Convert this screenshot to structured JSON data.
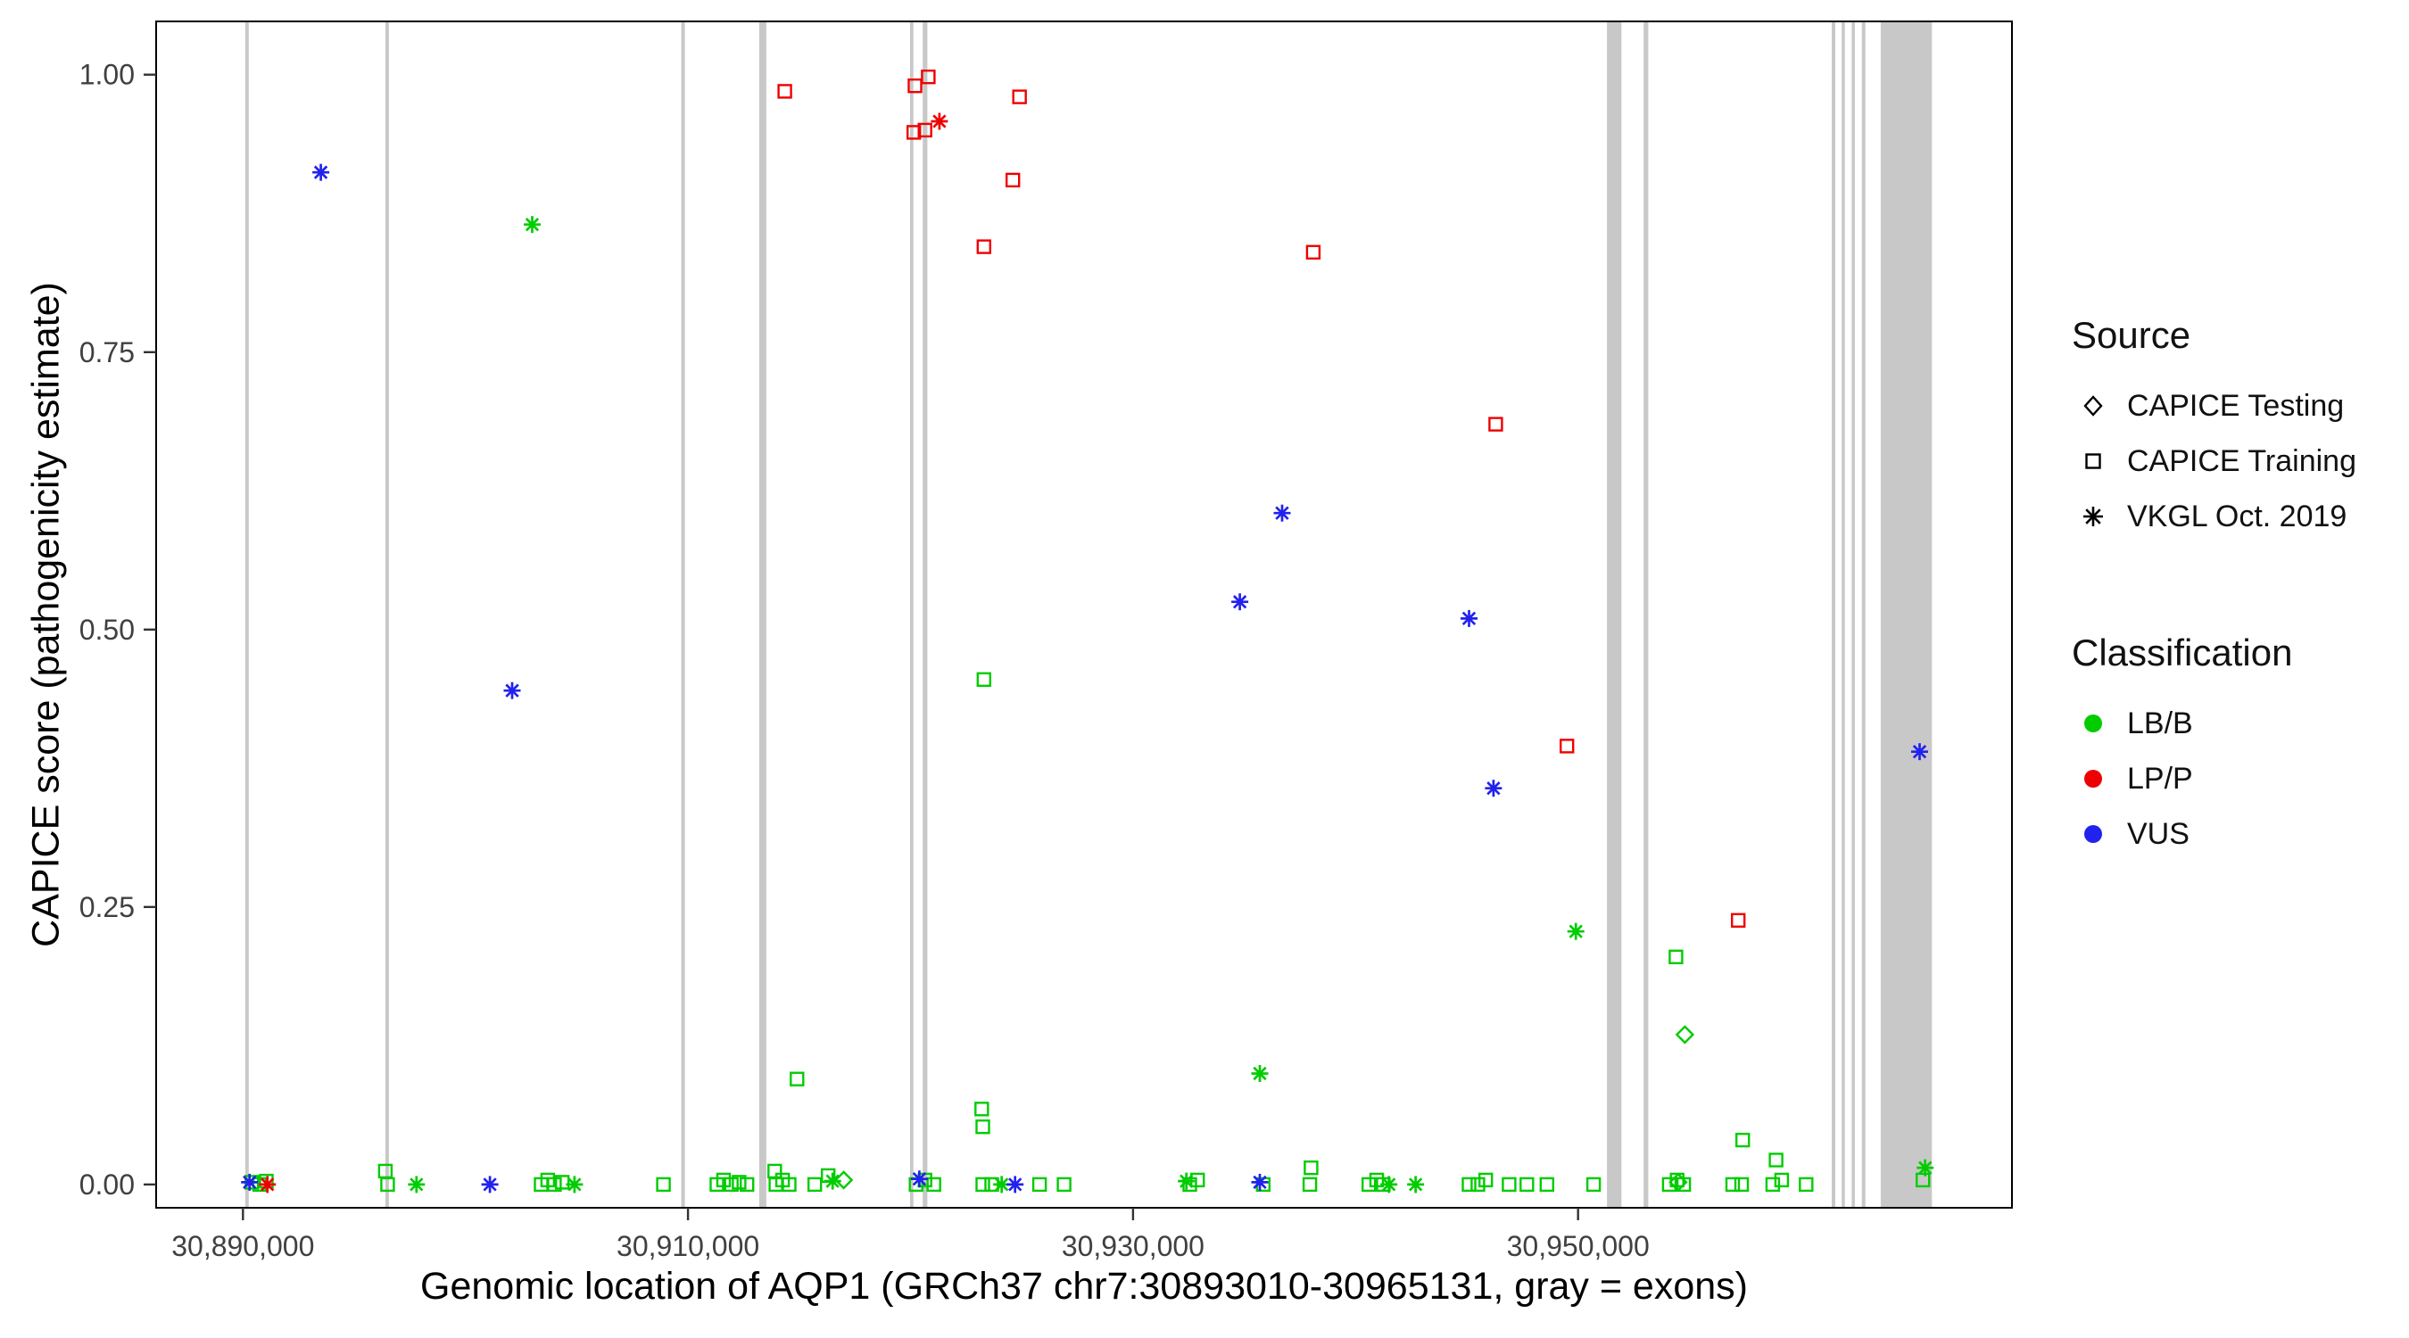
{
  "chart_data": {
    "type": "scatter",
    "title": "",
    "xlabel": "Genomic location of AQP1 (GRCh37 chr7:30893010-30965131, gray = exons)",
    "ylabel": "CAPICE score (pathogenicity estimate)",
    "xlim": [
      30886100,
      30969500
    ],
    "ylim": [
      -0.021,
      1.048
    ],
    "grid": false,
    "x_ticks": [
      {
        "value": 30890000,
        "label": "30,890,000"
      },
      {
        "value": 30910000,
        "label": "30,910,000"
      },
      {
        "value": 30930000,
        "label": "30,930,000"
      },
      {
        "value": 30950000,
        "label": "30,950,000"
      }
    ],
    "y_ticks": [
      {
        "value": 0.0,
        "label": "0.00"
      },
      {
        "value": 0.25,
        "label": "0.25"
      },
      {
        "value": 0.5,
        "label": "0.50"
      },
      {
        "value": 0.75,
        "label": "0.75"
      },
      {
        "value": 1.0,
        "label": "1.00"
      }
    ],
    "exon_color": "#c8c8c8",
    "exons": [
      {
        "start": 30890100,
        "end": 30890260
      },
      {
        "start": 30896400,
        "end": 30896560
      },
      {
        "start": 30909700,
        "end": 30909860
      },
      {
        "start": 30913200,
        "end": 30913520
      },
      {
        "start": 30919980,
        "end": 30920130
      },
      {
        "start": 30920550,
        "end": 30920760
      },
      {
        "start": 30951300,
        "end": 30951950
      },
      {
        "start": 30952950,
        "end": 30953160
      },
      {
        "start": 30961400,
        "end": 30961560
      },
      {
        "start": 30961850,
        "end": 30961990
      },
      {
        "start": 30962300,
        "end": 30962440
      },
      {
        "start": 30962750,
        "end": 30962910
      },
      {
        "start": 30963600,
        "end": 30965900
      }
    ],
    "classification_colors": {
      "LB/B": "#00cc00",
      "LP/P": "#ee0000",
      "VUS": "#2222ee"
    },
    "series": [
      {
        "name": "CAPICE Testing / LB/B",
        "source": "CAPICE Testing",
        "classification": "LB/B",
        "shape": "diamond",
        "color": "#00cc00",
        "points": [
          [
            30917000,
            0.004
          ],
          [
            30954800,
            0.135
          ],
          [
            30954500,
            0.002
          ]
        ]
      },
      {
        "name": "CAPICE Training / LB/B",
        "source": "CAPICE Training",
        "classification": "LB/B",
        "shape": "square",
        "color": "#00cc00",
        "points": [
          [
            30914900,
            0.095
          ],
          [
            30923300,
            0.455
          ],
          [
            30923200,
            0.068
          ],
          [
            30923250,
            0.052
          ],
          [
            30954400,
            0.205
          ],
          [
            30957400,
            0.04
          ],
          [
            30958900,
            0.022
          ],
          [
            30913900,
            0.012
          ],
          [
            30896400,
            0.012
          ],
          [
            30938000,
            0.015
          ],
          [
            30916300,
            0.008
          ],
          [
            30890400,
            0.002
          ],
          [
            30890750,
            0.0
          ],
          [
            30891050,
            0.003
          ],
          [
            30896500,
            0.0
          ],
          [
            30903400,
            0.0
          ],
          [
            30903700,
            0.004
          ],
          [
            30904000,
            0.0
          ],
          [
            30904350,
            0.002
          ],
          [
            30908900,
            0.0
          ],
          [
            30911300,
            0.0
          ],
          [
            30911600,
            0.004
          ],
          [
            30911950,
            0.0
          ],
          [
            30912300,
            0.002
          ],
          [
            30912650,
            0.0
          ],
          [
            30913950,
            0.0
          ],
          [
            30914250,
            0.004
          ],
          [
            30914550,
            0.0
          ],
          [
            30915700,
            0.0
          ],
          [
            30920250,
            0.0
          ],
          [
            30920650,
            0.004
          ],
          [
            30921050,
            0.0
          ],
          [
            30923250,
            0.0
          ],
          [
            30923650,
            0.0
          ],
          [
            30925800,
            0.0
          ],
          [
            30926900,
            0.0
          ],
          [
            30932550,
            0.0
          ],
          [
            30932900,
            0.004
          ],
          [
            30935850,
            0.0
          ],
          [
            30937950,
            0.0
          ],
          [
            30940600,
            0.0
          ],
          [
            30940950,
            0.004
          ],
          [
            30941250,
            0.0
          ],
          [
            30945100,
            0.0
          ],
          [
            30945500,
            0.0
          ],
          [
            30945850,
            0.004
          ],
          [
            30946900,
            0.0
          ],
          [
            30947700,
            0.0
          ],
          [
            30948600,
            0.0
          ],
          [
            30950700,
            0.0
          ],
          [
            30954100,
            0.0
          ],
          [
            30954450,
            0.004
          ],
          [
            30954750,
            0.0
          ],
          [
            30956950,
            0.0
          ],
          [
            30957350,
            0.0
          ],
          [
            30958750,
            0.0
          ],
          [
            30959150,
            0.004
          ],
          [
            30960250,
            0.0
          ],
          [
            30965500,
            0.004
          ]
        ]
      },
      {
        "name": "CAPICE Training / LP/P",
        "source": "CAPICE Training",
        "classification": "LP/P",
        "shape": "square",
        "color": "#ee0000",
        "points": [
          [
            30914350,
            0.985
          ],
          [
            30920200,
            0.99
          ],
          [
            30920800,
            0.998
          ],
          [
            30920150,
            0.948
          ],
          [
            30920650,
            0.95
          ],
          [
            30924900,
            0.98
          ],
          [
            30924600,
            0.905
          ],
          [
            30923300,
            0.845
          ],
          [
            30938100,
            0.84
          ],
          [
            30946300,
            0.685
          ],
          [
            30949500,
            0.395
          ],
          [
            30957200,
            0.238
          ]
        ]
      },
      {
        "name": "VKGL Oct. 2019 / LB/B",
        "source": "VKGL Oct. 2019",
        "classification": "LB/B",
        "shape": "asterisk",
        "color": "#00cc00",
        "points": [
          [
            30903000,
            0.865
          ],
          [
            30935700,
            0.1
          ],
          [
            30949900,
            0.228
          ],
          [
            30965600,
            0.015
          ],
          [
            30897800,
            0.0
          ],
          [
            30904900,
            0.0
          ],
          [
            30916500,
            0.003
          ],
          [
            30924100,
            0.0
          ],
          [
            30932400,
            0.003
          ],
          [
            30941500,
            0.0
          ],
          [
            30942700,
            0.0
          ]
        ]
      },
      {
        "name": "VKGL Oct. 2019 / LP/P",
        "source": "VKGL Oct. 2019",
        "classification": "LP/P",
        "shape": "asterisk",
        "color": "#ee0000",
        "points": [
          [
            30921300,
            0.958
          ],
          [
            30891100,
            0.0
          ]
        ]
      },
      {
        "name": "VKGL Oct. 2019 / VUS",
        "source": "VKGL Oct. 2019",
        "classification": "VUS",
        "shape": "asterisk",
        "color": "#2222ee",
        "points": [
          [
            30893500,
            0.912
          ],
          [
            30902100,
            0.445
          ],
          [
            30934800,
            0.525
          ],
          [
            30936700,
            0.605
          ],
          [
            30945100,
            0.51
          ],
          [
            30946200,
            0.357
          ],
          [
            30965350,
            0.39
          ],
          [
            30890300,
            0.002
          ],
          [
            30901100,
            0.0
          ],
          [
            30920400,
            0.005
          ],
          [
            30924700,
            0.0
          ],
          [
            30935700,
            0.002
          ]
        ]
      }
    ],
    "legend": {
      "source_title": "Source",
      "source_items": [
        {
          "label": "CAPICE Testing",
          "shape": "diamond"
        },
        {
          "label": "CAPICE Training",
          "shape": "square"
        },
        {
          "label": "VKGL Oct. 2019",
          "shape": "asterisk"
        }
      ],
      "classification_title": "Classification",
      "classification_items": [
        {
          "label": "LB/B",
          "color": "#00cc00"
        },
        {
          "label": "LP/P",
          "color": "#ee0000"
        },
        {
          "label": "VUS",
          "color": "#2222ee"
        }
      ]
    }
  }
}
